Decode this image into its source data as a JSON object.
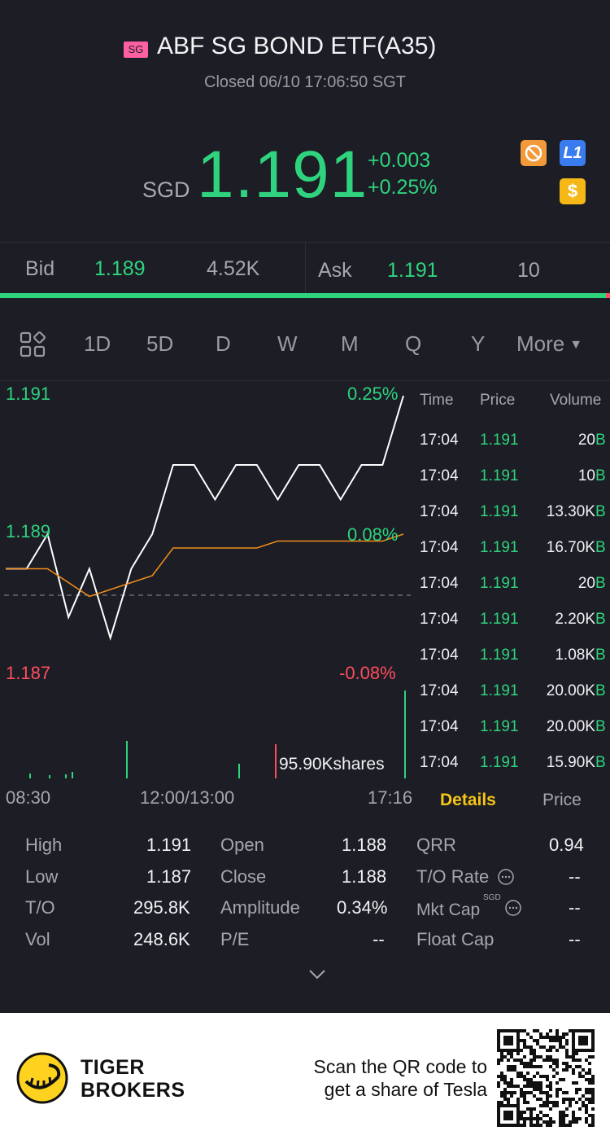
{
  "header": {
    "market_badge": "SG",
    "title": "ABF SG BOND ETF(A35)",
    "status": "Closed 06/10 17:06:50 SGT",
    "currency": "SGD",
    "price": "1.191",
    "change": "+0.003",
    "change_pct": "+0.25%",
    "icon_l1_label": "L1",
    "icon_dollar_label": "$",
    "colors": {
      "up": "#2fd37e",
      "down": "#ff4d5f",
      "accent": "#f5c518"
    }
  },
  "bidask": {
    "bid_label": "Bid",
    "bid_price": "1.189",
    "bid_size": "4.52K",
    "ask_label": "Ask",
    "ask_price": "1.191",
    "ask_size": "10"
  },
  "tabs": [
    "1D",
    "5D",
    "D",
    "W",
    "M",
    "Q",
    "Y"
  ],
  "tabs_more": "More",
  "active_tab": "1D",
  "chart": {
    "y_top": "1.191",
    "y_mid": "1.189",
    "y_bottom": "1.187",
    "pct_top": "0.25%",
    "pct_mid": "0.08%",
    "pct_bottom": "-0.08%",
    "volume_label": "95.90Kshares",
    "x_start": "08:30",
    "x_mid": "12:00/13:00",
    "x_end": "17:16"
  },
  "chart_data": {
    "type": "line",
    "series": [
      {
        "values": [
          1.1885,
          1.1885,
          1.189,
          1.1878,
          1.1885,
          1.1875,
          1.1885,
          1.189,
          1.19,
          1.19,
          1.1895,
          1.19,
          1.19,
          1.1895,
          1.19,
          1.19,
          1.1895,
          1.19,
          1.19,
          1.191
        ]
      },
      {
        "values": [
          1.1885,
          1.1885,
          1.1885,
          1.1883,
          1.1881,
          1.1882,
          1.1883,
          1.1884,
          1.1888,
          1.1888,
          1.1888,
          1.1888,
          1.1888,
          1.1889,
          1.1889,
          1.1889,
          1.1889,
          1.1889,
          1.1889,
          1.189
        ]
      }
    ],
    "ylim": [
      1.187,
      1.191
    ],
    "prev_close": 1.188
  },
  "trades": {
    "headers": [
      "Time",
      "Price",
      "Volume"
    ],
    "rows": [
      {
        "time": "17:04",
        "price": "1.191",
        "vol": "20",
        "flag": "B"
      },
      {
        "time": "17:04",
        "price": "1.191",
        "vol": "10",
        "flag": "B"
      },
      {
        "time": "17:04",
        "price": "1.191",
        "vol": "13.30K",
        "flag": "B"
      },
      {
        "time": "17:04",
        "price": "1.191",
        "vol": "16.70K",
        "flag": "B"
      },
      {
        "time": "17:04",
        "price": "1.191",
        "vol": "20",
        "flag": "B"
      },
      {
        "time": "17:04",
        "price": "1.191",
        "vol": "2.20K",
        "flag": "B"
      },
      {
        "time": "17:04",
        "price": "1.191",
        "vol": "1.08K",
        "flag": "B"
      },
      {
        "time": "17:04",
        "price": "1.191",
        "vol": "20.00K",
        "flag": "B"
      },
      {
        "time": "17:04",
        "price": "1.191",
        "vol": "20.00K",
        "flag": "B"
      },
      {
        "time": "17:04",
        "price": "1.191",
        "vol": "15.90K",
        "flag": "B"
      }
    ],
    "tab_details": "Details",
    "tab_price": "Price"
  },
  "stats": {
    "high_label": "High",
    "high": "1.191",
    "low_label": "Low",
    "low": "1.187",
    "to_label": "T/O",
    "to": "295.8K",
    "vol_label": "Vol",
    "vol": "248.6K",
    "open_label": "Open",
    "open": "1.188",
    "close_label": "Close",
    "close": "1.188",
    "amp_label": "Amplitude",
    "amp": "0.34%",
    "pe_label": "P/E",
    "pe": "--",
    "qrr_label": "QRR",
    "qrr": "0.94",
    "torate_label": "T/O Rate",
    "torate": "--",
    "mktcap_label": "Mkt Cap",
    "mktcap_sup": "SGD",
    "mktcap": "--",
    "floatcap_label": "Float Cap",
    "floatcap": "--"
  },
  "footer": {
    "brand_line1": "TIGER",
    "brand_line2": "BROKERS",
    "promo_line1": "Scan the QR code to",
    "promo_line2": "get a share of Tesla"
  }
}
